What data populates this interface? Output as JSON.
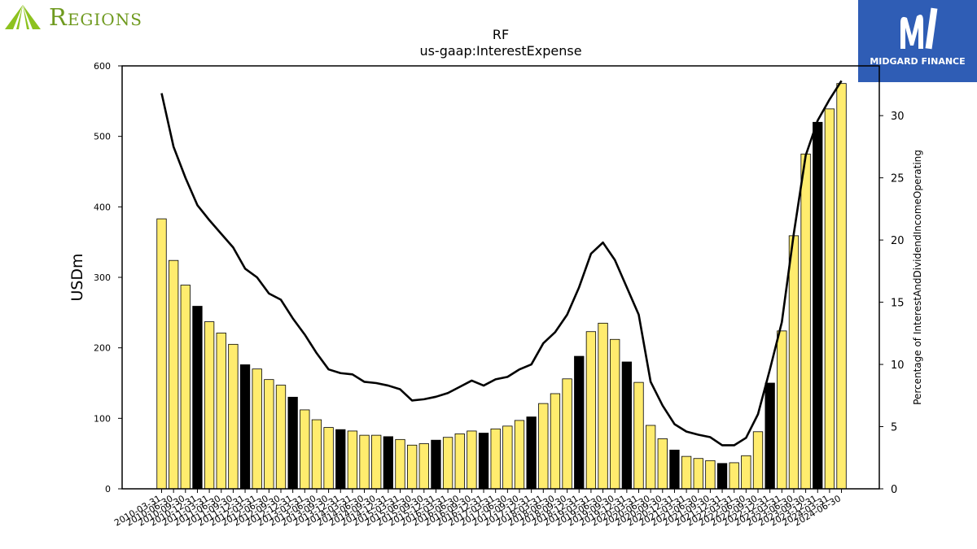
{
  "header": {
    "left_logo_text": "Regions",
    "right_logo_text": "MIDGARD FINANCE",
    "left_logo_icon": "regions-triangle-logo",
    "right_logo_icon": "midgard-m-logo"
  },
  "colors": {
    "bar_fill": "#ffec6e",
    "bar_highlight": "#000000",
    "line": "#000000",
    "brand_left": "#6f9a1f",
    "brand_right": "#2f5db5"
  },
  "chart_data": {
    "type": "bar",
    "title": "RF",
    "subtitle": "us-gaap:InterestExpense",
    "ylabel": "USDm",
    "y2label": "Percentage of InterestAndDividendIncomeOperating",
    "ylim": [
      0,
      600
    ],
    "y2lim": [
      0,
      34
    ],
    "yticks": [
      0,
      100,
      200,
      300,
      400,
      500,
      600
    ],
    "y2ticks": [
      0,
      5,
      10,
      15,
      20,
      25,
      30
    ],
    "grid": false,
    "categories": [
      "2010-03-31",
      "2010-06-30",
      "2010-09-30",
      "2010-12-31",
      "2011-03-31",
      "2011-06-30",
      "2011-09-30",
      "2011-12-31",
      "2012-03-31",
      "2012-06-30",
      "2012-09-30",
      "2012-12-31",
      "2013-03-31",
      "2013-06-30",
      "2013-09-30",
      "2013-12-31",
      "2014-03-31",
      "2014-06-30",
      "2014-09-30",
      "2014-12-31",
      "2015-03-31",
      "2015-06-30",
      "2015-09-30",
      "2015-12-31",
      "2016-03-31",
      "2016-06-30",
      "2016-09-30",
      "2016-12-31",
      "2017-03-31",
      "2017-06-30",
      "2017-09-30",
      "2017-12-31",
      "2018-03-31",
      "2018-06-30",
      "2018-09-30",
      "2018-12-31",
      "2019-03-31",
      "2019-06-30",
      "2019-09-30",
      "2019-12-31",
      "2020-03-31",
      "2020-06-30",
      "2020-09-30",
      "2020-12-31",
      "2021-03-31",
      "2021-06-30",
      "2021-09-30",
      "2021-12-31",
      "2022-03-31",
      "2022-06-30",
      "2022-09-30",
      "2022-12-31",
      "2023-03-31",
      "2023-06-30",
      "2023-09-30",
      "2023-12-31",
      "2024-03-31",
      "2024-06-30"
    ],
    "series": [
      {
        "type": "bar",
        "values": [
          383,
          324,
          289,
          259,
          237,
          221,
          205,
          176,
          170,
          155,
          147,
          130,
          112,
          98,
          87,
          84,
          82,
          76,
          76,
          74,
          70,
          62,
          64,
          69,
          73,
          78,
          82,
          79,
          85,
          89,
          97,
          102,
          121,
          135,
          156,
          188,
          223,
          235,
          212,
          180,
          151,
          90,
          71,
          55,
          46,
          43,
          40,
          36,
          37,
          47,
          81,
          150,
          224,
          359,
          475,
          520,
          539,
          575
        ],
        "highlight": [
          false,
          false,
          false,
          true,
          false,
          false,
          false,
          true,
          false,
          false,
          false,
          true,
          false,
          false,
          false,
          true,
          false,
          false,
          false,
          true,
          false,
          false,
          false,
          true,
          false,
          false,
          false,
          true,
          false,
          false,
          false,
          true,
          false,
          false,
          false,
          true,
          false,
          false,
          false,
          true,
          false,
          false,
          false,
          true,
          false,
          false,
          false,
          true,
          false,
          false,
          false,
          true,
          false,
          false,
          false,
          true,
          false,
          false
        ]
      },
      {
        "type": "line",
        "axis": "right",
        "values": [
          31.8,
          27.5,
          25,
          22.8,
          21.6,
          20.5,
          19.4,
          17.7,
          17,
          15.7,
          15.2,
          13.7,
          12.4,
          10.9,
          9.6,
          9.3,
          9.2,
          8.6,
          8.5,
          8.3,
          8,
          7.1,
          7.2,
          7.4,
          7.7,
          8.2,
          8.7,
          8.3,
          8.8,
          9,
          9.6,
          10,
          11.7,
          12.6,
          14,
          16.2,
          18.9,
          19.8,
          18.4,
          16.2,
          14,
          8.6,
          6.7,
          5.2,
          4.6,
          4.35,
          4.15,
          3.5,
          3.5,
          4.1,
          6,
          9.6,
          13.4,
          20.5,
          26.8,
          29.6,
          31.3,
          32.8
        ]
      }
    ]
  }
}
